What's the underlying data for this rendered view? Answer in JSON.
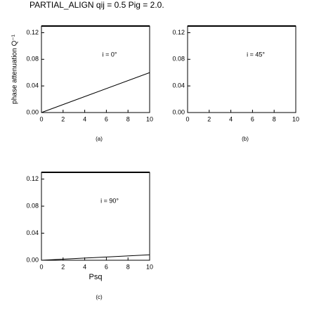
{
  "title": "PARTIAL_ALIGN  qij = 0.5 Pig = 2.0.",
  "chart_data": [
    {
      "type": "line",
      "panel_label": "(a)",
      "annotation": "i = 0°",
      "ylabel": "phase attenuation Q⁻¹",
      "xlim": [
        0,
        10
      ],
      "ylim": [
        0,
        0.13
      ],
      "xticks": [
        0,
        2,
        4,
        6,
        8,
        10
      ],
      "yticks": [
        {
          "value": 0,
          "label": "0.00"
        },
        {
          "value": 0.04,
          "label": "0.04"
        },
        {
          "value": 0.08,
          "label": "0.08"
        },
        {
          "value": 0.12,
          "label": "0.12"
        }
      ],
      "series": [
        {
          "color": "#000000",
          "x": [
            0,
            10
          ],
          "values": [
            0,
            0.06
          ]
        }
      ]
    },
    {
      "type": "line",
      "panel_label": "(b)",
      "annotation": "i = 45°",
      "xlim": [
        0,
        10
      ],
      "ylim": [
        0,
        0.13
      ],
      "xticks": [
        0,
        2,
        4,
        6,
        8,
        10
      ],
      "yticks": [
        {
          "value": 0,
          "label": "0.00"
        },
        {
          "value": 0.04,
          "label": "0.04"
        },
        {
          "value": 0.08,
          "label": "0.08"
        },
        {
          "value": 0.12,
          "label": "0.12"
        }
      ],
      "series": []
    },
    {
      "type": "line",
      "panel_label": "(c)",
      "annotation": "i = 90°",
      "xlabel": "Psq",
      "xlim": [
        0,
        10
      ],
      "ylim": [
        0,
        0.13
      ],
      "xticks": [
        0,
        2,
        4,
        6,
        8,
        10
      ],
      "yticks": [
        {
          "value": 0,
          "label": "0.00"
        },
        {
          "value": 0.04,
          "label": "0.04"
        },
        {
          "value": 0.08,
          "label": "0.08"
        },
        {
          "value": 0.12,
          "label": "0.12"
        }
      ],
      "series": [
        {
          "color": "#000000",
          "x": [
            0,
            10
          ],
          "values": [
            0,
            0.008
          ]
        }
      ]
    }
  ]
}
